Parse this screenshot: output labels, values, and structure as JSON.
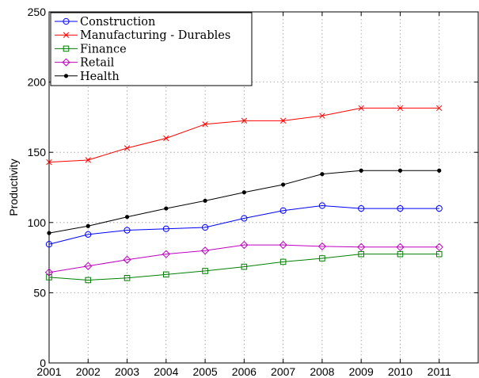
{
  "chart_data": {
    "type": "line",
    "title": "",
    "xlabel": "",
    "ylabel": "Productivity",
    "x": [
      2001,
      2002,
      2003,
      2004,
      2005,
      2006,
      2007,
      2008,
      2009,
      2010,
      2011
    ],
    "x_ticks": [
      "2001",
      "2002",
      "2003",
      "2004",
      "2005",
      "2006",
      "2007",
      "2008",
      "2009",
      "2010",
      "2011"
    ],
    "y_ticks": [
      "0",
      "50",
      "100",
      "150",
      "200",
      "250"
    ],
    "xlim": [
      2001,
      2012
    ],
    "ylim": [
      0,
      250
    ],
    "grid": true,
    "legend_position": "top-left",
    "series": [
      {
        "name": "Construction",
        "color": "#0000ff",
        "marker": "circle",
        "values": [
          84.5,
          91.5,
          94.5,
          95.5,
          96.5,
          103,
          108.5,
          112,
          110,
          110,
          110
        ]
      },
      {
        "name": "Manufacturing - Durables",
        "color": "#ff0000",
        "marker": "x",
        "values": [
          143,
          144.5,
          153,
          160,
          170,
          172.5,
          172.5,
          176,
          181.5,
          181.5,
          181.5
        ]
      },
      {
        "name": "Finance",
        "color": "#008000",
        "marker": "square",
        "values": [
          61,
          59,
          60.5,
          63,
          65.5,
          68.5,
          72,
          74.5,
          77.5,
          77.5,
          77.5
        ]
      },
      {
        "name": "Retail",
        "color": "#bf00bf",
        "marker": "diamond",
        "values": [
          64.5,
          69,
          73.5,
          77.5,
          80,
          84,
          84,
          83,
          82.5,
          82.5,
          82.5
        ]
      },
      {
        "name": "Health",
        "color": "#000000",
        "marker": "dot",
        "values": [
          92.5,
          97.5,
          104,
          110,
          115.5,
          121.5,
          127,
          134.5,
          137,
          137,
          137
        ]
      }
    ]
  }
}
